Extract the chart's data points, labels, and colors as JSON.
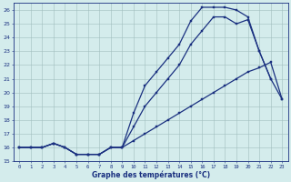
{
  "title": "Graphe des températures (°C)",
  "background_color": "#d4ecec",
  "grid_color": "#a0bebe",
  "line_color": "#1a3080",
  "x_hours": [
    0,
    1,
    2,
    3,
    4,
    5,
    6,
    7,
    8,
    9,
    10,
    11,
    12,
    13,
    14,
    15,
    16,
    17,
    18,
    19,
    20,
    21,
    22,
    23
  ],
  "curve_top": [
    16,
    16,
    16,
    16.3,
    16,
    15.5,
    15.5,
    15.5,
    16,
    16,
    18.5,
    20.5,
    21.5,
    22.5,
    23.5,
    25.2,
    26.2,
    26.2,
    26.2,
    26,
    25.5,
    23,
    21,
    null
  ],
  "curve_mid": [
    16,
    16,
    16,
    16.3,
    16,
    15.5,
    15.5,
    15.5,
    16,
    16,
    17.5,
    19,
    20,
    21,
    22,
    23.5,
    24.5,
    25.5,
    25.5,
    25,
    25.3,
    23,
    21,
    19.5
  ],
  "curve_bot": [
    16,
    16,
    16,
    16.3,
    16,
    15.5,
    15.5,
    15.5,
    16,
    16,
    16.5,
    17.0,
    17.5,
    18.0,
    18.5,
    19.0,
    19.5,
    20.0,
    20.5,
    21.0,
    21.5,
    21.8,
    22.2,
    19.5
  ],
  "ylim": [
    15,
    26.5
  ],
  "yticks": [
    15,
    16,
    17,
    18,
    19,
    20,
    21,
    22,
    23,
    24,
    25,
    26
  ],
  "xlim": [
    -0.5,
    23.5
  ],
  "figsize": [
    3.2,
    2.0
  ],
  "dpi": 100
}
